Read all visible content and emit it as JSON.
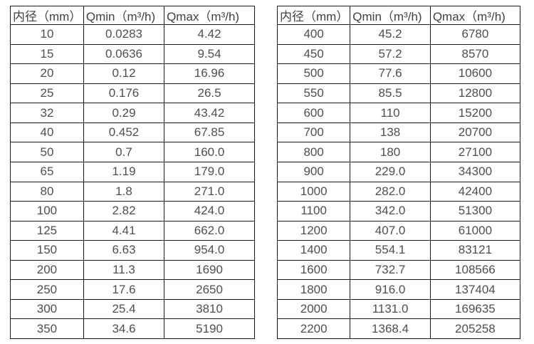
{
  "colors": {
    "background": "#ffffff",
    "border": "#1c1c1c",
    "header_text": "#414141",
    "cell_text": "#4f4f4f"
  },
  "chart_data": [
    {
      "type": "table",
      "title": "",
      "columns": [
        "内径（mm）",
        "Qmin（m³/h)",
        "Qmax（m³/h)"
      ],
      "rows": [
        [
          "10",
          "0.0283",
          "4.42"
        ],
        [
          "15",
          "0.0636",
          "9.54"
        ],
        [
          "20",
          "0.12",
          "16.96"
        ],
        [
          "25",
          "0.176",
          "26.5"
        ],
        [
          "32",
          "0.29",
          "43.42"
        ],
        [
          "40",
          "0.452",
          "67.85"
        ],
        [
          "50",
          "0.7",
          "160.0"
        ],
        [
          "65",
          "1.19",
          "179.0"
        ],
        [
          "80",
          "1.8",
          "271.0"
        ],
        [
          "100",
          "2.82",
          "424.0"
        ],
        [
          "125",
          "4.41",
          "662.0"
        ],
        [
          "150",
          "6.63",
          "954.0"
        ],
        [
          "200",
          "11.3",
          "1690"
        ],
        [
          "250",
          "17.6",
          "2650"
        ],
        [
          "300",
          "25.4",
          "3810"
        ],
        [
          "350",
          "34.6",
          "5190"
        ]
      ]
    },
    {
      "type": "table",
      "title": "",
      "columns": [
        "内径（mm）",
        "Qmin（m³/h)",
        "Qmax（m³/h)"
      ],
      "rows": [
        [
          "400",
          "45.2",
          "6780"
        ],
        [
          "450",
          "57.2",
          "8570"
        ],
        [
          "500",
          "77.6",
          "10600"
        ],
        [
          "550",
          "85.5",
          "12800"
        ],
        [
          "600",
          "110",
          "15200"
        ],
        [
          "700",
          "138",
          "20700"
        ],
        [
          "800",
          "180",
          "27100"
        ],
        [
          "900",
          "229.0",
          "34300"
        ],
        [
          "1000",
          "282.0",
          "42400"
        ],
        [
          "1100",
          "342.0",
          "51300"
        ],
        [
          "1200",
          "407.0",
          "61000"
        ],
        [
          "1400",
          "554.1",
          "83121"
        ],
        [
          "1600",
          "732.7",
          "108566"
        ],
        [
          "1800",
          "916.0",
          "137404"
        ],
        [
          "2000",
          "1131.0",
          "169635"
        ],
        [
          "2200",
          "1368.4",
          "205258"
        ]
      ]
    }
  ]
}
